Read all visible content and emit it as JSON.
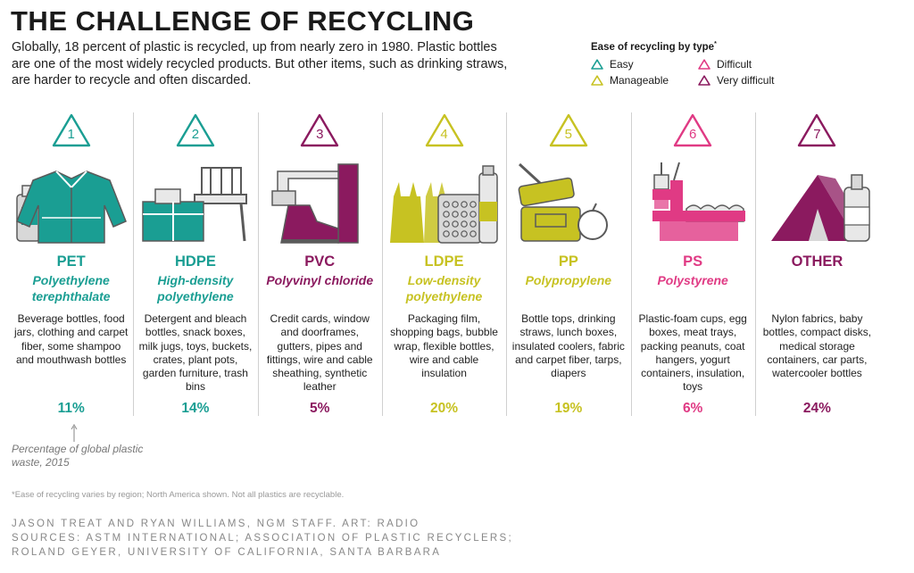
{
  "title": "THE CHALLENGE OF RECYCLING",
  "intro": "Globally, 18 percent of plastic is recycled, up from nearly zero in 1980. Plastic bottles are one of the most widely recycled products. But other items, such as drinking straws, are harder to recycle and often discarded.",
  "legend": {
    "title": "Ease of recycling by type",
    "title_mark": "*",
    "items": [
      {
        "label": "Easy",
        "color": "#1a9e93"
      },
      {
        "label": "Difficult",
        "color": "#e03a84"
      },
      {
        "label": "Manageable",
        "color": "#c7c222"
      },
      {
        "label": "Very difficult",
        "color": "#8b1a5f"
      }
    ]
  },
  "colors": {
    "easy": "#1a9e93",
    "manageable": "#c7c222",
    "difficult": "#e03a84",
    "very_difficult": "#8b1a5f",
    "neutral": "#d0d0d0"
  },
  "plastics": [
    {
      "number": "1",
      "code": "PET",
      "name": "Polyethylene terephthalate",
      "uses": "Beverage bottles, food jars, clothing and carpet fiber, some shampoo and mouthwash bottles",
      "percent": "11%",
      "ease": "easy",
      "icon": "jacket-and-bottle-icon"
    },
    {
      "number": "2",
      "code": "HDPE",
      "name": "High-density polyethylene",
      "uses": "Detergent and bleach bottles, snack boxes, milk jugs, toys, buckets, crates, plant pots, garden furniture, trash bins",
      "percent": "14%",
      "ease": "easy",
      "icon": "chair-and-crate-icon"
    },
    {
      "number": "3",
      "code": "PVC",
      "name": "Polyvinyl chloride",
      "uses": "Credit cards, window and doorframes, gutters, pipes and fittings, wire and cable sheathing, synthetic leather",
      "percent": "5%",
      "ease": "very_difficult",
      "icon": "boot-and-pipes-icon"
    },
    {
      "number": "4",
      "code": "LDPE",
      "name": "Low-density polyethylene",
      "uses": "Packaging film, shopping bags, bubble wrap, flexible bottles, wire and cable insulation",
      "percent": "20%",
      "ease": "manageable",
      "icon": "bags-and-bubble-wrap-icon"
    },
    {
      "number": "5",
      "code": "PP",
      "name": "Polypropylene",
      "uses": "Bottle tops, drinking straws, lunch boxes, insulated coolers, fabric and carpet fiber, tarps, diapers",
      "percent": "19%",
      "ease": "manageable",
      "icon": "lunch-box-and-straw-icon"
    },
    {
      "number": "6",
      "code": "PS",
      "name": "Polystyrene",
      "uses": "Plastic-foam cups, egg boxes, meat trays, packing peanuts, coat hangers, yogurt containers, insulation, toys",
      "percent": "6%",
      "ease": "difficult",
      "icon": "cups-and-egg-box-icon"
    },
    {
      "number": "7",
      "code": "OTHER",
      "name": "",
      "uses": "Nylon fabrics, baby bottles, compact disks, medical storage containers, car parts, watercooler bottles",
      "percent": "24%",
      "ease": "very_difficult",
      "icon": "tent-and-bottle-icon"
    }
  ],
  "percent_note": "Percentage of global plastic waste, 2015",
  "footnote": "*Ease of recycling varies by region; North America shown. Not all plastics are recyclable.",
  "credits": [
    "JASON TREAT AND RYAN WILLIAMS, NGM STAFF. ART: RADIO",
    "SOURCES: ASTM INTERNATIONAL; ASSOCIATION OF PLASTIC RECYCLERS;",
    "ROLAND GEYER, UNIVERSITY OF CALIFORNIA, SANTA BARBARA"
  ]
}
